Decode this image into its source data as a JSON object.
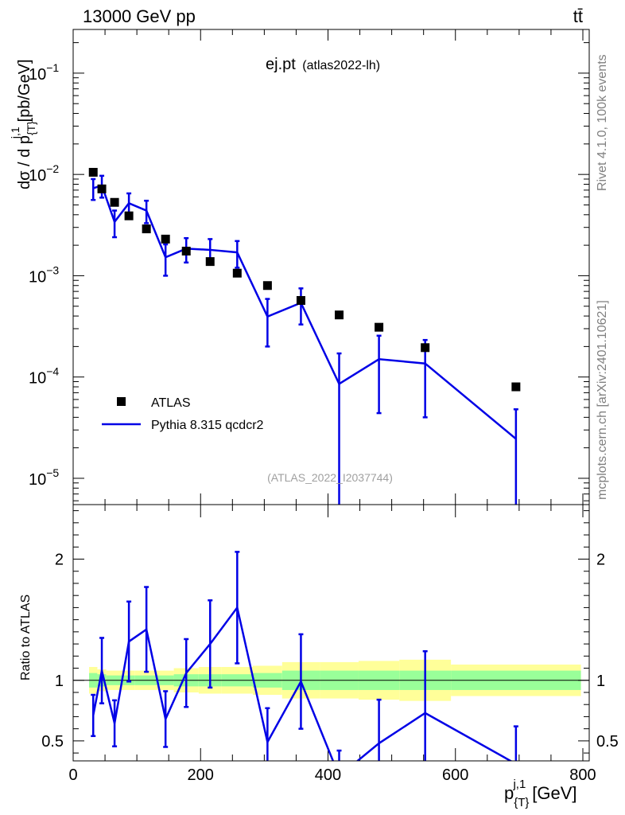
{
  "header": {
    "energy_label": "13000 GeV pp",
    "process_label": "tt̄",
    "side_rivet": "Rivet 4.1.0,  100k events",
    "side_site": "mcplots.cern.ch [arXiv:2401.10621]"
  },
  "chart_data": [
    {
      "type": "scatter",
      "title": "ej.pt",
      "subtitle": "(atlas2022-lh)",
      "watermark": "(ATLAS_2022_I2037744)",
      "xlabel": "p_{T}^{j,1} [GeV]",
      "xlabel_main": "p",
      "xlabel_sup": "j,1",
      "xlabel_sub": "{T}",
      "xlabel_unit": "[GeV]",
      "ylabel": "dσ / d p_{T}^{j,1} [pb/GeV]",
      "ylabel_pre": "dσ / d p",
      "ylabel_sup": "j,1",
      "ylabel_sub": "{T}",
      "ylabel_unit": "[pb/GeV]",
      "yscale": "log",
      "xlim": [
        0,
        810
      ],
      "ylim": [
        5.5e-06,
        0.27
      ],
      "y_ticks": [
        {
          "value": 1e-05,
          "base": "10",
          "exp": "−5"
        },
        {
          "value": 0.0001,
          "base": "10",
          "exp": "−4"
        },
        {
          "value": 0.001,
          "base": "10",
          "exp": "−3"
        },
        {
          "value": 0.01,
          "base": "10",
          "exp": "−2"
        },
        {
          "value": 0.1,
          "base": "10",
          "exp": "−1"
        }
      ],
      "legend": {
        "placement": "lower-left",
        "entries": [
          "ATLAS",
          "Pythia 8.315 qcdcr2"
        ]
      },
      "series": [
        {
          "name": "ATLAS",
          "style": "markers",
          "color": "#000000",
          "x": [
            31.5,
            45,
            65,
            87.5,
            115,
            145,
            177.5,
            215,
            257.5,
            305,
            357.5,
            417.5,
            480,
            552.5,
            695
          ],
          "y": [
            0.0105,
            0.0072,
            0.0053,
            0.0039,
            0.0029,
            0.0023,
            0.00175,
            0.00138,
            0.00106,
            0.0008,
            0.00057,
            0.00041,
            0.00031,
            0.000195,
            8e-05
          ]
        },
        {
          "name": "Pythia 8.315 qcdcr2",
          "style": "line",
          "color": "#0000e6",
          "x": [
            31.5,
            45,
            65,
            87.5,
            115,
            145,
            177.5,
            215,
            257.5,
            305,
            357.5,
            417.5,
            480,
            552.5,
            695
          ],
          "y": [
            0.0073,
            0.0078,
            0.0034,
            0.0052,
            0.0044,
            0.00152,
            0.00185,
            0.0018,
            0.0017,
            0.000395,
            0.00054,
            8.55e-05,
            0.00015,
            0.000136,
            2.45e-05
          ],
          "err_low": [
            0.0017,
            0.0019,
            0.001,
            0.0013,
            0.0011,
            0.00052,
            0.0005,
            0.0005,
            0.0005,
            0.000195,
            0.00021,
            8.55e-05,
            0.000106,
            9.6e-05,
            2.45e-05
          ],
          "err_high": [
            0.0017,
            0.0019,
            0.001,
            0.0013,
            0.0011,
            0.00052,
            0.0005,
            0.0005,
            0.0005,
            0.000195,
            0.00021,
            8.55e-05,
            0.000106,
            9.6e-05,
            2.35e-05
          ]
        }
      ]
    },
    {
      "type": "line",
      "ylabel": "Ratio to ATLAS",
      "xlim": [
        0,
        810
      ],
      "ylim": [
        0.335,
        2.45
      ],
      "x_ticks": [
        0,
        200,
        400,
        600,
        800
      ],
      "y_ticks": [
        0.5,
        1,
        2
      ],
      "y_tick_labels": [
        "0.5",
        "1",
        "2"
      ],
      "reference_line": 1,
      "bands": {
        "edges": [
          25,
          38,
          52,
          78,
          97,
          132,
          158,
          197,
          233,
          282,
          328,
          387,
          448,
          512,
          593,
          797
        ],
        "inner_low": [
          0.94,
          0.95,
          0.96,
          0.96,
          0.96,
          0.96,
          0.95,
          0.95,
          0.95,
          0.94,
          0.92,
          0.92,
          0.92,
          0.92,
          0.92
        ],
        "inner_high": [
          1.06,
          1.05,
          1.04,
          1.04,
          1.04,
          1.04,
          1.05,
          1.05,
          1.05,
          1.06,
          1.08,
          1.08,
          1.08,
          1.08,
          1.08
        ],
        "outer_low": [
          0.89,
          0.91,
          0.92,
          0.92,
          0.92,
          0.92,
          0.9,
          0.89,
          0.89,
          0.88,
          0.85,
          0.85,
          0.84,
          0.83,
          0.87
        ],
        "outer_high": [
          1.11,
          1.09,
          1.08,
          1.08,
          1.08,
          1.08,
          1.1,
          1.11,
          1.11,
          1.12,
          1.15,
          1.15,
          1.16,
          1.17,
          1.13
        ],
        "inner_color": "#99ff99",
        "outer_color": "#ffff99"
      },
      "series": [
        {
          "name": "Pythia 8.315 qcdcr2 / ATLAS",
          "color": "#0000e6",
          "x": [
            31.5,
            45,
            65,
            87.5,
            115,
            145,
            177.5,
            215,
            257.5,
            305,
            357.5,
            417.5,
            480,
            552.5,
            695
          ],
          "y": [
            0.71,
            1.08,
            0.645,
            1.32,
            1.42,
            0.68,
            1.06,
            1.3,
            1.6,
            0.49,
            0.99,
            0.21,
            0.48,
            0.73,
            0.31
          ],
          "err": [
            0.17,
            0.27,
            0.19,
            0.33,
            0.35,
            0.23,
            0.28,
            0.36,
            0.46,
            0.28,
            0.39,
            0.21,
            0.36,
            0.51,
            0.31
          ]
        }
      ]
    }
  ]
}
